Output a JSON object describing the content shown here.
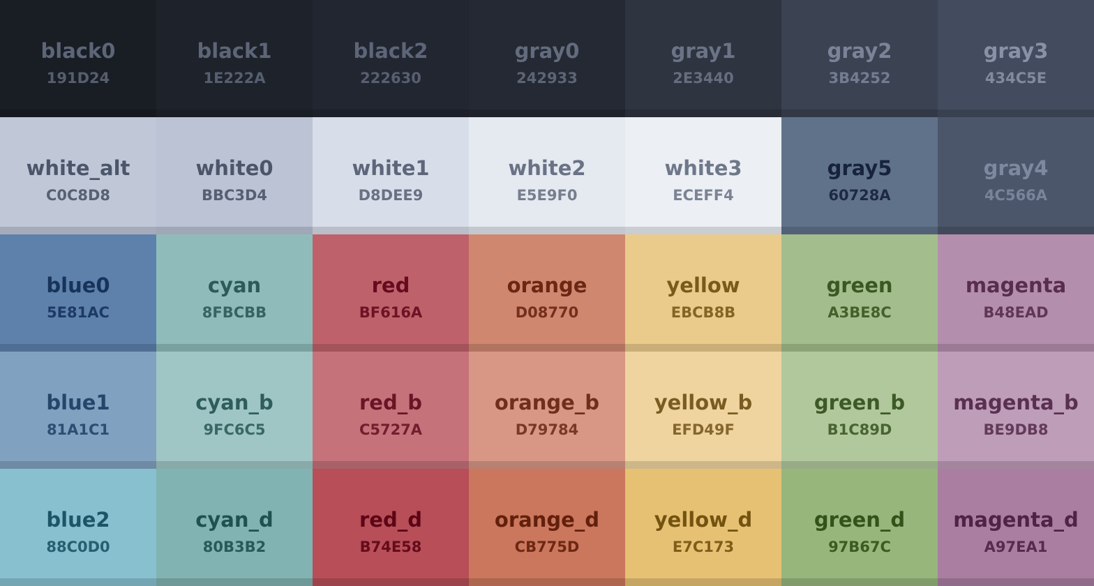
{
  "swatches": [
    {
      "name": "black0",
      "hex": "191D24",
      "text": "#5d6678"
    },
    {
      "name": "black1",
      "hex": "1E222A",
      "text": "#5d6678"
    },
    {
      "name": "black2",
      "hex": "222630",
      "text": "#5d6678"
    },
    {
      "name": "gray0",
      "hex": "242933",
      "text": "#636c7e"
    },
    {
      "name": "gray1",
      "hex": "2E3440",
      "text": "#6b7486"
    },
    {
      "name": "gray2",
      "hex": "3B4252",
      "text": "#7a8398"
    },
    {
      "name": "gray3",
      "hex": "434C5E",
      "text": "#8891a6"
    },
    {
      "name": "white_alt",
      "hex": "C0C8D8",
      "text": "#4c566a"
    },
    {
      "name": "white0",
      "hex": "BBC3D4",
      "text": "#4c566a"
    },
    {
      "name": "white1",
      "hex": "D8DEE9",
      "text": "#5d667a"
    },
    {
      "name": "white2",
      "hex": "E5E9F0",
      "text": "#6a7385"
    },
    {
      "name": "white3",
      "hex": "ECEFF4",
      "text": "#6f788a"
    },
    {
      "name": "gray5",
      "hex": "60728A",
      "text": "#16233a"
    },
    {
      "name": "gray4",
      "hex": "4C566A",
      "text": "#7e88a0"
    },
    {
      "name": "blue0",
      "hex": "5E81AC",
      "text": "#17335a"
    },
    {
      "name": "cyan",
      "hex": "8FBCBB",
      "text": "#2c5b5a"
    },
    {
      "name": "red",
      "hex": "BF616A",
      "text": "#640b1f"
    },
    {
      "name": "orange",
      "hex": "D08770",
      "text": "#6a2713"
    },
    {
      "name": "yellow",
      "hex": "EBCB8B",
      "text": "#7a5a1c"
    },
    {
      "name": "green",
      "hex": "A3BE8C",
      "text": "#3a5822"
    },
    {
      "name": "magenta",
      "hex": "B48EAD",
      "text": "#582d4e"
    },
    {
      "name": "blue1",
      "hex": "81A1C1",
      "text": "#25466a"
    },
    {
      "name": "cyan_b",
      "hex": "9FC6C5",
      "text": "#2e5d5c"
    },
    {
      "name": "red_b",
      "hex": "C5727A",
      "text": "#6a1526"
    },
    {
      "name": "orange_b",
      "hex": "D79784",
      "text": "#6e2e1b"
    },
    {
      "name": "yellow_b",
      "hex": "EFD49F",
      "text": "#7a5c22"
    },
    {
      "name": "green_b",
      "hex": "B1C89D",
      "text": "#3d5a26"
    },
    {
      "name": "magenta_b",
      "hex": "BE9DB8",
      "text": "#5a3050"
    },
    {
      "name": "blue2",
      "hex": "88C0D0",
      "text": "#1d5566"
    },
    {
      "name": "cyan_d",
      "hex": "80B3B2",
      "text": "#1f5150"
    },
    {
      "name": "red_d",
      "hex": "B74E58",
      "text": "#5c0515"
    },
    {
      "name": "orange_d",
      "hex": "CB775D",
      "text": "#62200c"
    },
    {
      "name": "yellow_d",
      "hex": "E7C173",
      "text": "#735310"
    },
    {
      "name": "green_d",
      "hex": "97B67C",
      "text": "#33521a"
    },
    {
      "name": "magenta_d",
      "hex": "A97EA1",
      "text": "#4e2344"
    }
  ]
}
